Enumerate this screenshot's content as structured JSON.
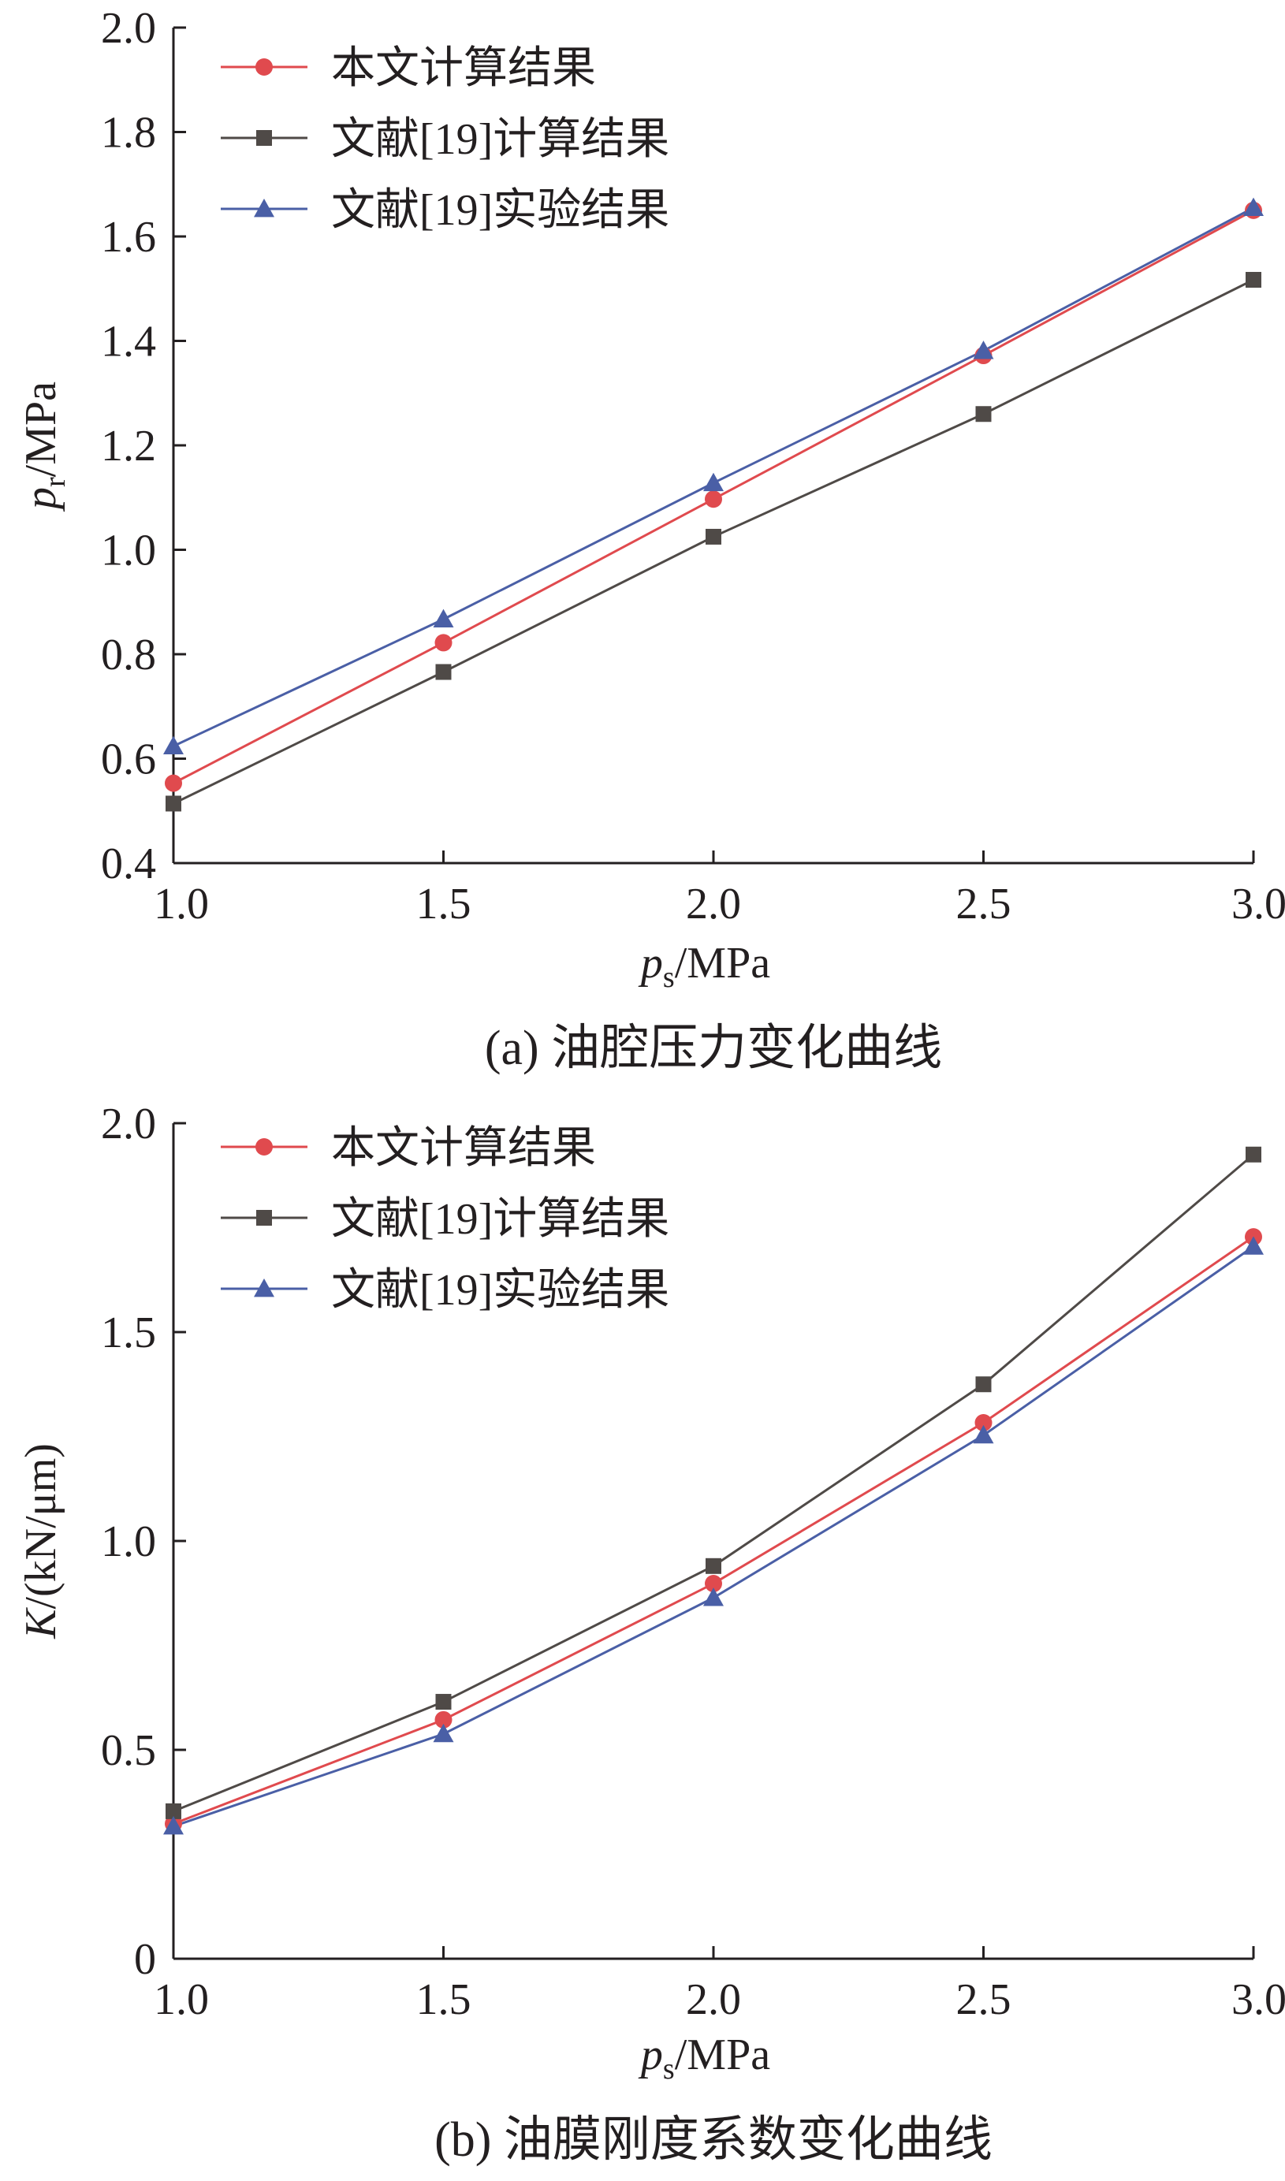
{
  "figure": {
    "captions": [
      "(a) 油腔压力变化曲线",
      "(b) 油膜刚度系数变化曲线"
    ]
  },
  "chart_data": [
    {
      "type": "line",
      "caption": "(a) 油腔压力变化曲线",
      "xlabel": {
        "main": "p",
        "sub": "s",
        "rest": "/MPa"
      },
      "ylabel": {
        "main": "p",
        "sub": "r",
        "rest": "/MPa"
      },
      "xlim": [
        1.0,
        3.0
      ],
      "ylim": [
        0.4,
        2.0
      ],
      "xticks": [
        1.0,
        1.5,
        2.0,
        2.5,
        3.0
      ],
      "xtick_labels": [
        "1.0",
        "1.5",
        "2.0",
        "2.5",
        "3.0"
      ],
      "yticks": [
        0.4,
        0.6,
        0.8,
        1.0,
        1.2,
        1.4,
        1.6,
        1.8,
        2.0
      ],
      "ytick_labels": [
        "0.4",
        "0.6",
        "0.8",
        "1.0",
        "1.2",
        "1.4",
        "1.6",
        "1.8",
        "2.0"
      ],
      "grid": false,
      "legend_position": "top-left",
      "x": [
        1.0,
        1.5,
        2.0,
        2.5,
        3.0
      ],
      "series": [
        {
          "name": "本文计算结果",
          "color": "#e04a4e",
          "marker": "circle",
          "values": [
            0.553,
            0.822,
            1.097,
            1.372,
            1.65
          ]
        },
        {
          "name": "文献[19]计算结果",
          "color": "#4f4a47",
          "marker": "square",
          "values": [
            0.514,
            0.766,
            1.025,
            1.26,
            1.517
          ]
        },
        {
          "name": "文献[19]实验结果",
          "color": "#4a5fa6",
          "marker": "triangle",
          "values": [
            0.624,
            0.867,
            1.128,
            1.381,
            1.655
          ]
        }
      ]
    },
    {
      "type": "line",
      "caption": "(b) 油膜刚度系数变化曲线",
      "xlabel": {
        "main": "p",
        "sub": "s",
        "rest": "/MPa"
      },
      "ylabel": {
        "main": "K",
        "sub": "",
        "rest": "/(kN/μm)"
      },
      "xlim": [
        1.0,
        3.0
      ],
      "ylim": [
        0,
        2.0
      ],
      "xticks": [
        1.0,
        1.5,
        2.0,
        2.5,
        3.0
      ],
      "xtick_labels": [
        "1.0",
        "1.5",
        "2.0",
        "2.5",
        "3.0"
      ],
      "yticks": [
        0,
        0.5,
        1.0,
        1.5,
        2.0
      ],
      "ytick_labels": [
        "0",
        "0.5",
        "1.0",
        "1.5",
        "2.0"
      ],
      "grid": false,
      "legend_position": "top-left",
      "x": [
        1.0,
        1.5,
        2.0,
        2.5,
        3.0
      ],
      "series": [
        {
          "name": "本文计算结果",
          "color": "#e04a4e",
          "marker": "circle",
          "values": [
            0.323,
            0.572,
            0.898,
            1.283,
            1.728
          ]
        },
        {
          "name": "文献[19]计算结果",
          "color": "#4f4a47",
          "marker": "square",
          "values": [
            0.353,
            0.615,
            0.94,
            1.375,
            1.925
          ]
        },
        {
          "name": "文献[19]实验结果",
          "color": "#4a5fa6",
          "marker": "triangle",
          "values": [
            0.317,
            0.538,
            0.864,
            1.253,
            1.705
          ]
        }
      ]
    }
  ]
}
